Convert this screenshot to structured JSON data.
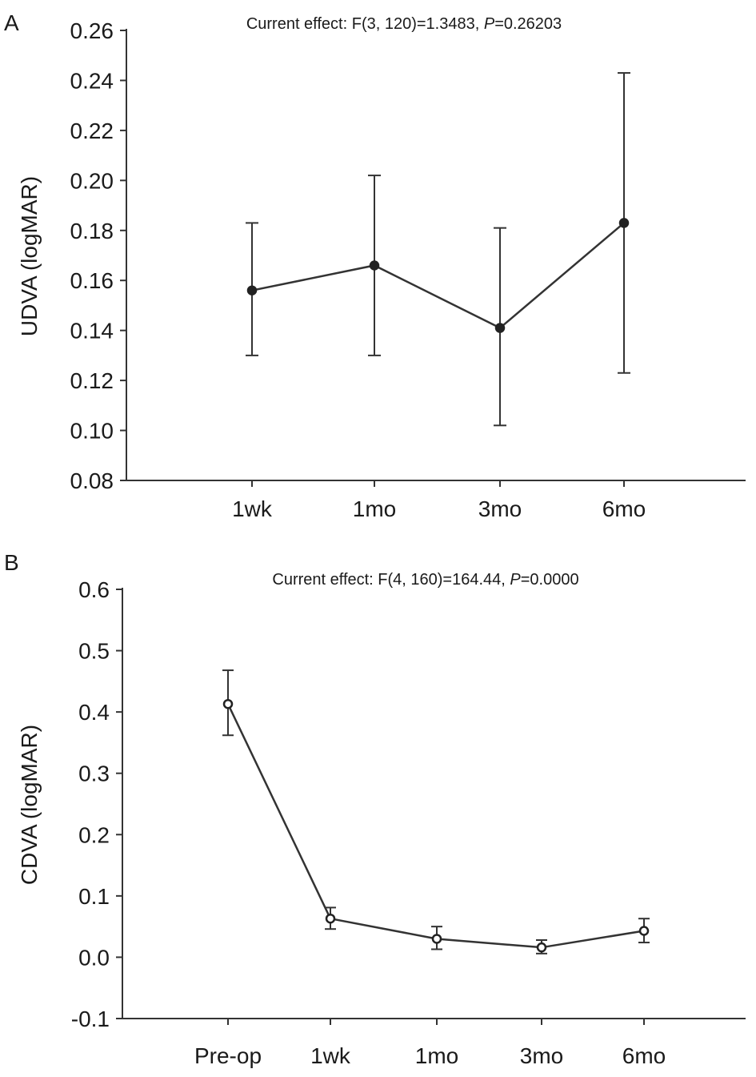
{
  "chart_data": [
    {
      "type": "line",
      "panel_label": "A",
      "annotation": {
        "prefix": "Current effect: F(3, 120)=1.3483, ",
        "p_label": "P",
        "p_value": "=0.26203"
      },
      "ylabel": "UDVA (logMAR)",
      "ylim": [
        0.08,
        0.26
      ],
      "yticks": [
        "0.26",
        "0.24",
        "0.22",
        "0.20",
        "0.18",
        "0.16",
        "0.14",
        "0.12",
        "0.10",
        "0.08"
      ],
      "ytick_values": [
        0.26,
        0.24,
        0.22,
        0.2,
        0.18,
        0.16,
        0.14,
        0.12,
        0.1,
        0.08
      ],
      "categories": [
        "1wk",
        "1mo",
        "3mo",
        "6mo"
      ],
      "values": [
        0.156,
        0.166,
        0.141,
        0.183
      ],
      "error_low": [
        0.13,
        0.13,
        0.102,
        0.123
      ],
      "error_high": [
        0.183,
        0.202,
        0.181,
        0.243
      ],
      "grid": false
    },
    {
      "type": "line",
      "panel_label": "B",
      "annotation": {
        "prefix": "Current effect: F(4, 160)=164.44, ",
        "p_label": "P",
        "p_value": "=0.0000"
      },
      "ylabel": "CDVA (logMAR)",
      "ylim": [
        -0.1,
        0.6
      ],
      "yticks": [
        "0.6",
        "0.5",
        "0.4",
        "0.3",
        "0.2",
        "0.1",
        "0.0",
        "-0.1"
      ],
      "ytick_values": [
        0.6,
        0.5,
        0.4,
        0.3,
        0.2,
        0.1,
        0.0,
        -0.1
      ],
      "categories": [
        "Pre-op",
        "1wk",
        "1mo",
        "3mo",
        "6mo"
      ],
      "values": [
        0.413,
        0.063,
        0.03,
        0.016,
        0.043
      ],
      "error_low": [
        0.362,
        0.046,
        0.013,
        0.006,
        0.024
      ],
      "error_high": [
        0.468,
        0.081,
        0.05,
        0.028,
        0.063
      ],
      "grid": false
    }
  ]
}
